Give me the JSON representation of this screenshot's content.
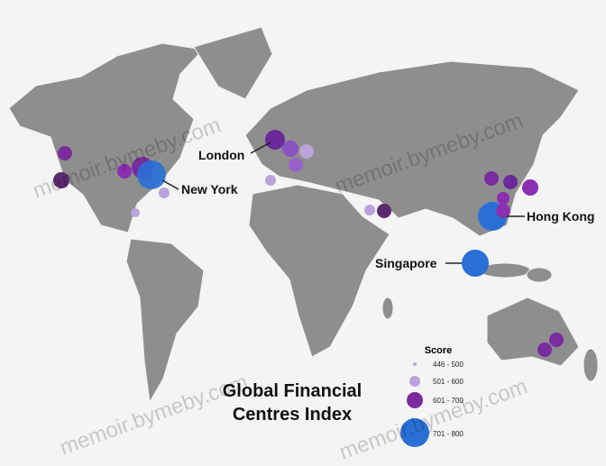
{
  "map": {
    "title": [
      "Global Financial",
      "Centres Index"
    ],
    "cities": [
      "London",
      "New York",
      "Hong Kong",
      "Singapore"
    ],
    "legend": {
      "title": "Score",
      "items": [
        "446 - 500",
        "501 - 600",
        "601 - 700",
        "701 - 800"
      ]
    },
    "watermark": "memoir.bymeby.com"
  }
}
